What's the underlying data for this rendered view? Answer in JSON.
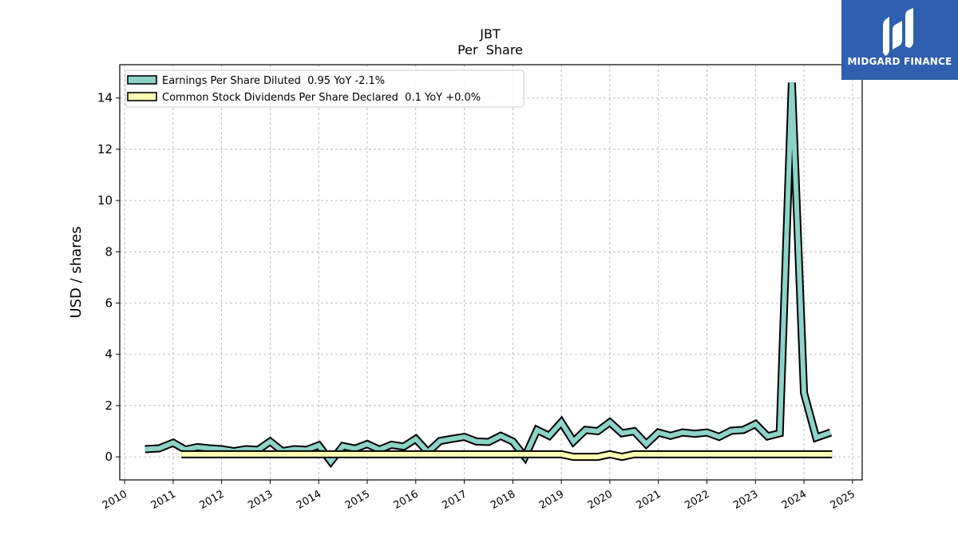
{
  "chart_data": {
    "type": "line",
    "title": "JBT",
    "subtitle": "Per  Share",
    "xlabel": "",
    "ylabel": "USD / shares",
    "xlim": [
      2009.9,
      2025.2
    ],
    "ylim": [
      -0.9,
      15.3
    ],
    "x_ticks": [
      "2010",
      "2011",
      "2012",
      "2013",
      "2014",
      "2015",
      "2016",
      "2017",
      "2018",
      "2019",
      "2020",
      "2021",
      "2022",
      "2023",
      "2024",
      "2025"
    ],
    "y_ticks": [
      "0",
      "2",
      "4",
      "6",
      "8",
      "10",
      "12",
      "14"
    ],
    "grid": true,
    "legend_position": "top-left",
    "series": [
      {
        "name": "Earnings Per Share Diluted  0.95 YoY -2.1%",
        "color": "#8dd3c7",
        "x": [
          2010.42,
          2010.71,
          2011.0,
          2011.25,
          2011.5,
          2011.75,
          2012.0,
          2012.25,
          2012.5,
          2012.75,
          2013.0,
          2013.25,
          2013.5,
          2013.75,
          2014.0,
          2014.25,
          2014.5,
          2014.75,
          2015.0,
          2015.25,
          2015.5,
          2015.75,
          2016.0,
          2016.25,
          2016.5,
          2016.75,
          2017.0,
          2017.25,
          2017.5,
          2017.75,
          2018.0,
          2018.25,
          2018.5,
          2018.75,
          2019.0,
          2019.25,
          2019.5,
          2019.75,
          2020.0,
          2020.25,
          2020.5,
          2020.75,
          2021.0,
          2021.25,
          2021.5,
          2021.75,
          2022.0,
          2022.25,
          2022.5,
          2022.75,
          2023.0,
          2023.25,
          2023.5,
          2023.75,
          2024.0,
          2024.25,
          2024.55
        ],
        "values": [
          0.3,
          0.33,
          0.55,
          0.28,
          0.38,
          0.33,
          0.3,
          0.22,
          0.3,
          0.27,
          0.6,
          0.22,
          0.3,
          0.27,
          0.45,
          -0.18,
          0.42,
          0.32,
          0.5,
          0.28,
          0.47,
          0.4,
          0.7,
          0.18,
          0.62,
          0.7,
          0.78,
          0.6,
          0.58,
          0.82,
          0.6,
          0.0,
          1.05,
          0.82,
          1.35,
          0.6,
          1.05,
          1.0,
          1.35,
          0.92,
          1.0,
          0.5,
          0.95,
          0.82,
          0.95,
          0.9,
          0.95,
          0.78,
          1.02,
          1.05,
          1.28,
          0.8,
          0.92,
          14.6,
          2.5,
          0.75,
          0.95
        ]
      },
      {
        "name": "Common Stock Dividends Per Share Declared  0.1 YoY +0.0%",
        "color": "#ffffb3",
        "x": [
          2011.17,
          2013.25,
          2016.0,
          2019.0,
          2019.25,
          2019.5,
          2019.75,
          2020.0,
          2020.25,
          2020.5,
          2024.58
        ],
        "values": [
          0.1,
          0.1,
          0.1,
          0.1,
          0.0,
          0.0,
          0.0,
          0.1,
          0.0,
          0.1,
          0.1
        ]
      }
    ]
  },
  "logo": {
    "text": "MIDGARD FINANCE",
    "background": "#2f5fae"
  }
}
